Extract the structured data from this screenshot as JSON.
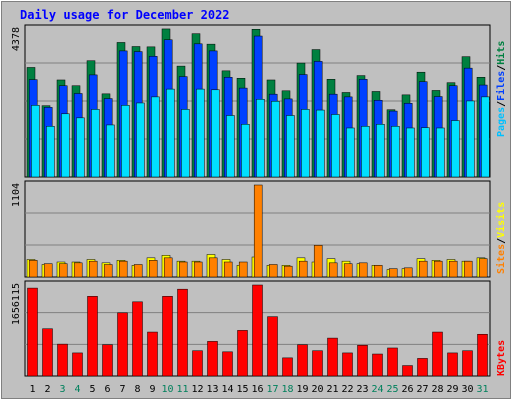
{
  "title": "Daily usage for December 2022",
  "colors": {
    "background": "#c0c0c0",
    "hits": "#008040",
    "files": "#0040ff",
    "pages": "#00e0ff",
    "sites": "#ff8000",
    "visits": "#ffff00",
    "kbytes": "#ff0000",
    "title_text": "#0000ff",
    "weekend_label": "#00805c",
    "weekday_label": "#000000"
  },
  "legend": {
    "top": [
      {
        "text": "Pages",
        "color": "#00c0ff"
      },
      {
        "text": "/",
        "color": "#000000"
      },
      {
        "text": "Files",
        "color": "#0040ff"
      },
      {
        "text": "/",
        "color": "#000000"
      },
      {
        "text": "Hits",
        "color": "#008040"
      }
    ],
    "middle": [
      {
        "text": "Sites",
        "color": "#ff8000"
      },
      {
        "text": "/",
        "color": "#000000"
      },
      {
        "text": "Visits",
        "color": "#ffff00"
      }
    ],
    "bottom": [
      {
        "text": "KBytes",
        "color": "#ff0000"
      }
    ]
  },
  "chart_data": [
    {
      "type": "bar",
      "panel": "hits-files-pages",
      "ymax_label": "4378",
      "ylim": [
        0,
        4378
      ],
      "grid": true,
      "categories": [
        "1",
        "2",
        "3",
        "4",
        "5",
        "6",
        "7",
        "8",
        "9",
        "10",
        "11",
        "12",
        "13",
        "14",
        "15",
        "16",
        "17",
        "18",
        "19",
        "20",
        "21",
        "22",
        "23",
        "24",
        "25",
        "26",
        "27",
        "28",
        "29",
        "30",
        "31"
      ],
      "weekend_days": [
        "3",
        "4",
        "10",
        "11",
        "17",
        "18",
        "24",
        "25",
        "31"
      ],
      "series": [
        {
          "name": "Hits",
          "values": [
            3240,
            2110,
            2870,
            2700,
            3440,
            2460,
            3980,
            3860,
            3850,
            4380,
            3280,
            4240,
            3930,
            3140,
            2920,
            4370,
            2870,
            2550,
            3370,
            3770,
            2890,
            2500,
            3000,
            2530,
            1990,
            2430,
            3100,
            2560,
            2790,
            3560,
            2950
          ]
        },
        {
          "name": "Files",
          "values": [
            2880,
            2060,
            2700,
            2470,
            3020,
            2320,
            3730,
            3710,
            3570,
            4060,
            2970,
            3940,
            3730,
            2950,
            2630,
            4170,
            2450,
            2310,
            3030,
            3420,
            2450,
            2370,
            2890,
            2270,
            1950,
            2180,
            2820,
            2380,
            2700,
            3220,
            2720
          ]
        },
        {
          "name": "Pages",
          "values": [
            2120,
            1500,
            1870,
            1750,
            2000,
            1540,
            2120,
            2190,
            2370,
            2600,
            2000,
            2600,
            2580,
            1820,
            1560,
            2300,
            2240,
            1820,
            2000,
            1980,
            1850,
            1450,
            1500,
            1560,
            1500,
            1450,
            1460,
            1450,
            1670,
            2250,
            2370
          ]
        }
      ]
    },
    {
      "type": "bar",
      "panel": "sites-visits",
      "ymax_label": "1104",
      "ylim": [
        0,
        1104
      ],
      "grid": true,
      "categories": [
        "1",
        "2",
        "3",
        "4",
        "5",
        "6",
        "7",
        "8",
        "9",
        "10",
        "11",
        "12",
        "13",
        "14",
        "15",
        "16",
        "17",
        "18",
        "19",
        "20",
        "21",
        "22",
        "23",
        "24",
        "25",
        "26",
        "27",
        "28",
        "29",
        "30",
        "31"
      ],
      "series": [
        {
          "name": "Visits",
          "values": [
            210,
            150,
            180,
            180,
            210,
            170,
            200,
            140,
            230,
            260,
            190,
            190,
            270,
            210,
            140,
            240,
            140,
            140,
            230,
            180,
            220,
            190,
            160,
            140,
            90,
            100,
            220,
            200,
            210,
            190,
            230
          ]
        },
        {
          "name": "Sites",
          "values": [
            200,
            160,
            160,
            170,
            190,
            150,
            190,
            150,
            200,
            230,
            180,
            180,
            230,
            180,
            180,
            1104,
            150,
            130,
            190,
            380,
            170,
            160,
            170,
            140,
            100,
            110,
            190,
            190,
            190,
            190,
            220
          ]
        }
      ]
    },
    {
      "type": "bar",
      "panel": "kbytes",
      "ymax_label": "1656115",
      "ylim": [
        0,
        1656115
      ],
      "grid": true,
      "categories": [
        "1",
        "2",
        "3",
        "4",
        "5",
        "6",
        "7",
        "8",
        "9",
        "10",
        "11",
        "12",
        "13",
        "14",
        "15",
        "16",
        "17",
        "18",
        "19",
        "20",
        "21",
        "22",
        "23",
        "24",
        "25",
        "26",
        "27",
        "28",
        "29",
        "30",
        "31"
      ],
      "series": [
        {
          "name": "KBytes",
          "values": [
            1600000,
            860000,
            580000,
            420000,
            1450000,
            570000,
            1150000,
            1350000,
            800000,
            1450000,
            1580000,
            460000,
            630000,
            440000,
            830000,
            1656115,
            1080000,
            330000,
            570000,
            460000,
            690000,
            420000,
            560000,
            400000,
            510000,
            190000,
            320000,
            800000,
            420000,
            460000,
            760000
          ]
        }
      ]
    }
  ]
}
